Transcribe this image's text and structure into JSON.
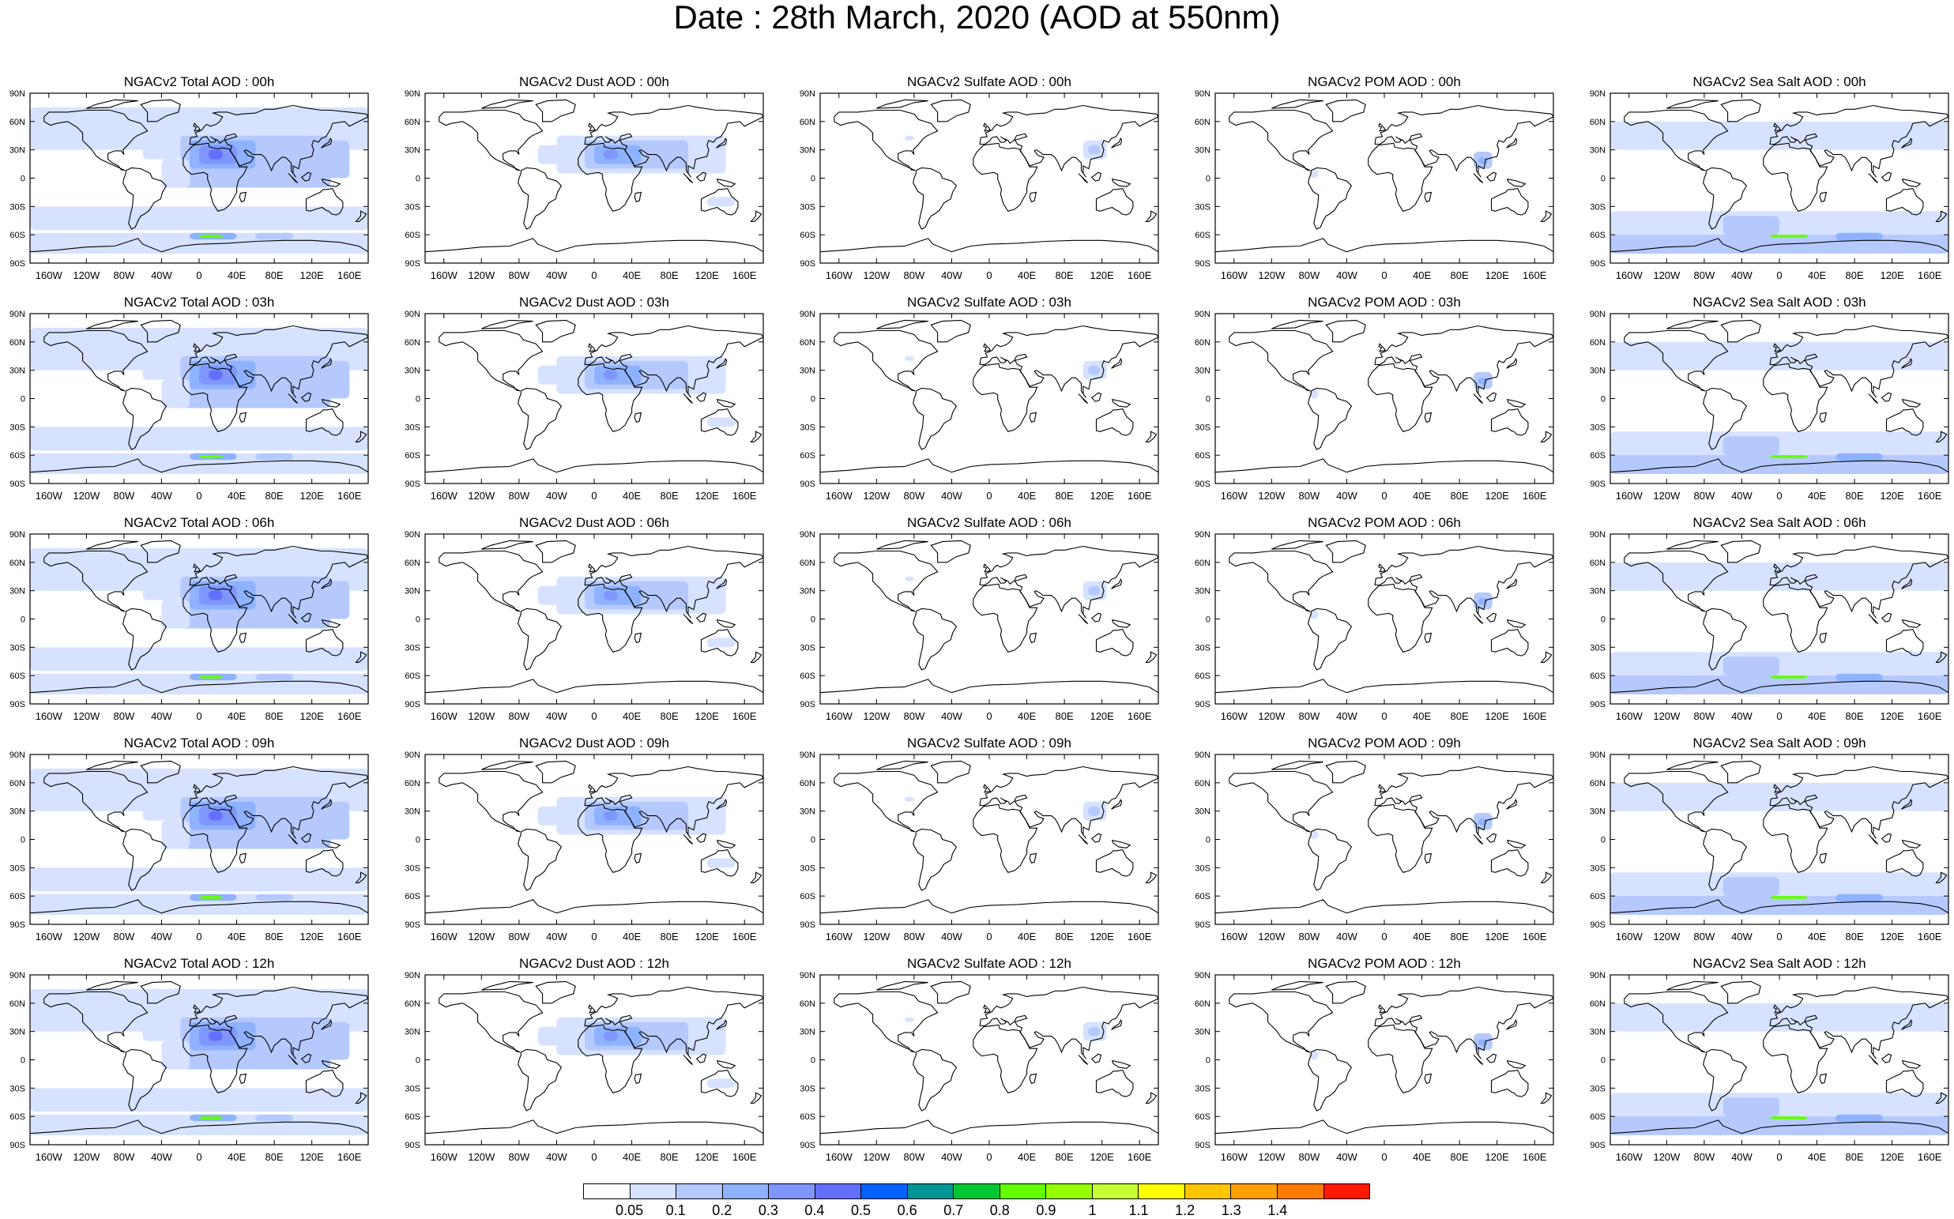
{
  "title": "Date : 28th March, 2020 (AOD at 550nm)",
  "panel_titles": [
    [
      "NGACv2 Total AOD : 00h",
      "NGACv2 Dust AOD : 00h",
      "NGACv2 Sulfate AOD : 00h",
      "NGACv2 POM AOD : 00h",
      "NGACv2 Sea Salt AOD : 00h"
    ],
    [
      "NGACv2 Total AOD : 03h",
      "NGACv2 Dust AOD : 03h",
      "NGACv2 Sulfate AOD : 03h",
      "NGACv2 POM AOD : 03h",
      "NGACv2 Sea Salt AOD : 03h"
    ],
    [
      "NGACv2 Total AOD : 06h",
      "NGACv2 Dust AOD : 06h",
      "NGACv2 Sulfate AOD : 06h",
      "NGACv2 POM AOD : 06h",
      "NGACv2 Sea Salt AOD : 06h"
    ],
    [
      "NGACv2 Total AOD : 09h",
      "NGACv2 Dust AOD : 09h",
      "NGACv2 Sulfate AOD : 09h",
      "NGACv2 POM AOD : 09h",
      "NGACv2 Sea Salt AOD : 09h"
    ],
    [
      "NGACv2 Total AOD :  12h",
      "NGACv2 Dust AOD : 12h",
      "NGACv2 Sulfate AOD : 12h",
      "NGACv2 POM  AOD : 12h",
      "NGACv2 Sea Salt AOD : 12h"
    ]
  ],
  "lat_labels": [
    "90N",
    "60N",
    "30N",
    "0",
    "30S",
    "60S",
    "90S"
  ],
  "lon_labels": [
    "160W",
    "120W",
    "80W",
    "40W",
    "0",
    "40E",
    "80E",
    "120E",
    "160E"
  ],
  "colorbar": {
    "colors": [
      "#ffffff",
      "#d6e2ff",
      "#b5c9ff",
      "#8eb2ff",
      "#7f96ff",
      "#6370ff",
      "#0063ff",
      "#009696",
      "#00c633",
      "#63ff00",
      "#96ff00",
      "#c6ff33",
      "#ffff00",
      "#ffc600",
      "#ffa000",
      "#ff7c00",
      "#ff1900"
    ],
    "labels": [
      "0.05",
      "0.1",
      "0.2",
      "0.3",
      "0.4",
      "0.5",
      "0.6",
      "0.7",
      "0.8",
      "0.9",
      "1",
      "1.1",
      "1.2",
      "1.3",
      "1.4"
    ]
  },
  "colors": {
    "coast": "#000000",
    "land_border": "#555555"
  }
}
